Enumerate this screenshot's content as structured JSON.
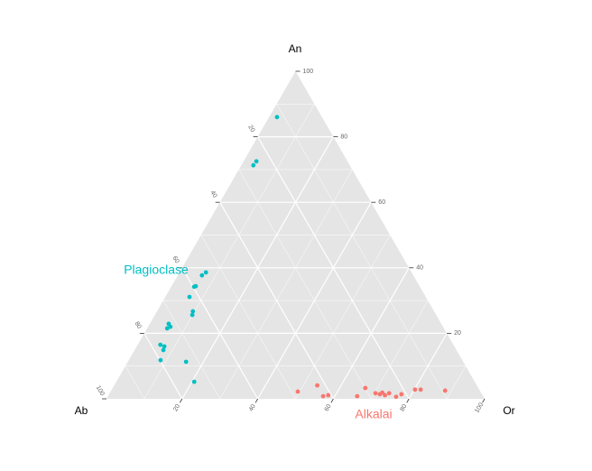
{
  "chart_data": {
    "type": "ternary",
    "axes": {
      "top": "An",
      "left": "Ab",
      "right": "Or"
    },
    "lim": [
      0,
      100
    ],
    "ticks": [
      20,
      40,
      60,
      80,
      100
    ],
    "grid": true,
    "background": "#e5e5e5",
    "series": [
      {
        "name": "Plagioclase",
        "color": "#00BFC4",
        "An": [
          86,
          72.5,
          71.3,
          38.6,
          37.7,
          34.4,
          34.2,
          31.1,
          26.7,
          25.6,
          22.9,
          21.5,
          22.0,
          16.5,
          16.0,
          14.9,
          11.8,
          11.3,
          5.2
        ],
        "Or": [
          2.1,
          3.4,
          3.2,
          7.0,
          6.4,
          6.4,
          6.1,
          6.4,
          9.5,
          9.9,
          5.0,
          5.3,
          5.9,
          6.0,
          7.3,
          7.6,
          8.4,
          15.4,
          20.6
        ]
      },
      {
        "name": "Alkalai",
        "color": "#F8766D",
        "An": [
          2.2,
          4.1,
          0.8,
          1.1,
          0.8,
          3.3,
          1.7,
          1.4,
          1.9,
          1.1,
          1.7,
          0.6,
          1.4,
          2.8,
          2.8,
          2.5
        ],
        "Or": [
          49.5,
          53.7,
          56.9,
          58.1,
          65.9,
          66.8,
          70.3,
          71.6,
          72.0,
          73.1,
          73.9,
          76.3,
          77.3,
          80.2,
          81.7,
          88.3
        ]
      }
    ]
  }
}
